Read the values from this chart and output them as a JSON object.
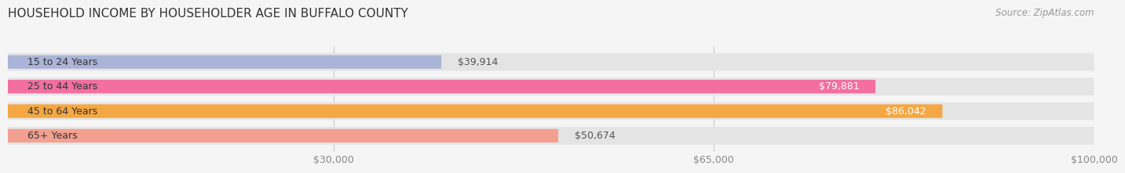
{
  "title": "HOUSEHOLD INCOME BY HOUSEHOLDER AGE IN BUFFALO COUNTY",
  "source": "Source: ZipAtlas.com",
  "categories": [
    "15 to 24 Years",
    "25 to 44 Years",
    "45 to 64 Years",
    "65+ Years"
  ],
  "values": [
    39914,
    79881,
    86042,
    50674
  ],
  "bar_colors": [
    "#aab4d8",
    "#f26fa0",
    "#f4a742",
    "#f4a090"
  ],
  "bar_label_colors": [
    "#555555",
    "#ffffff",
    "#ffffff",
    "#555555"
  ],
  "xmin": 0,
  "xmax": 100000,
  "xticks": [
    30000,
    65000,
    100000
  ],
  "xtick_labels": [
    "$30,000",
    "$65,000",
    "$100,000"
  ],
  "background_color": "#f5f5f5",
  "bar_bg_color": "#e4e4e4",
  "title_fontsize": 11,
  "source_fontsize": 8.5,
  "label_fontsize": 9,
  "tick_fontsize": 9
}
